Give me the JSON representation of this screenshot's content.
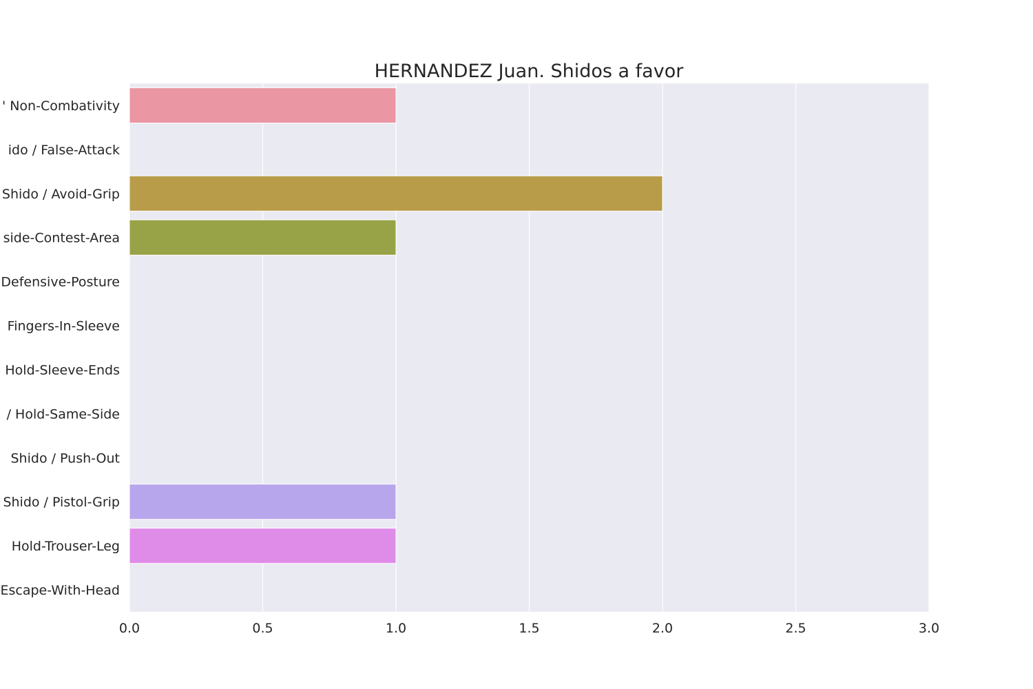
{
  "chart_data": {
    "type": "bar",
    "orientation": "horizontal",
    "title": "HERNANDEZ Juan. Shidos a favor",
    "xlabel": "",
    "ylabel": "",
    "xlim": [
      0,
      3
    ],
    "x_ticks": [
      0,
      0.5,
      1,
      1.5,
      2,
      2.5,
      3
    ],
    "x_tick_labels": [
      "0.0",
      "0.5",
      "1.0",
      "1.5",
      "2.0",
      "2.5",
      "3.0"
    ],
    "grid": true,
    "background": "#eaeaf2",
    "categories": [
      "' Non-Combativity",
      "ido / False-Attack",
      "Shido / Avoid-Grip",
      "side-Contest-Area",
      "Defensive-Posture",
      "Fingers-In-Sleeve",
      "Hold-Sleeve-Ends",
      "/ Hold-Same-Side",
      "Shido / Push-Out",
      "Shido / Pistol-Grip",
      "Hold-Trouser-Leg",
      "Escape-With-Head"
    ],
    "values": [
      1,
      0,
      2,
      1,
      0,
      0,
      0,
      0,
      0,
      1,
      1,
      0
    ],
    "colors": [
      "#ea96a3",
      "#e3986a",
      "#b89c49",
      "#98a246",
      "#56ad74",
      "#5aab99",
      "#5ca8ae",
      "#5ea3c8",
      "#8ea7f0",
      "#b8a6ec",
      "#df8ce8",
      "#e997c3"
    ]
  }
}
